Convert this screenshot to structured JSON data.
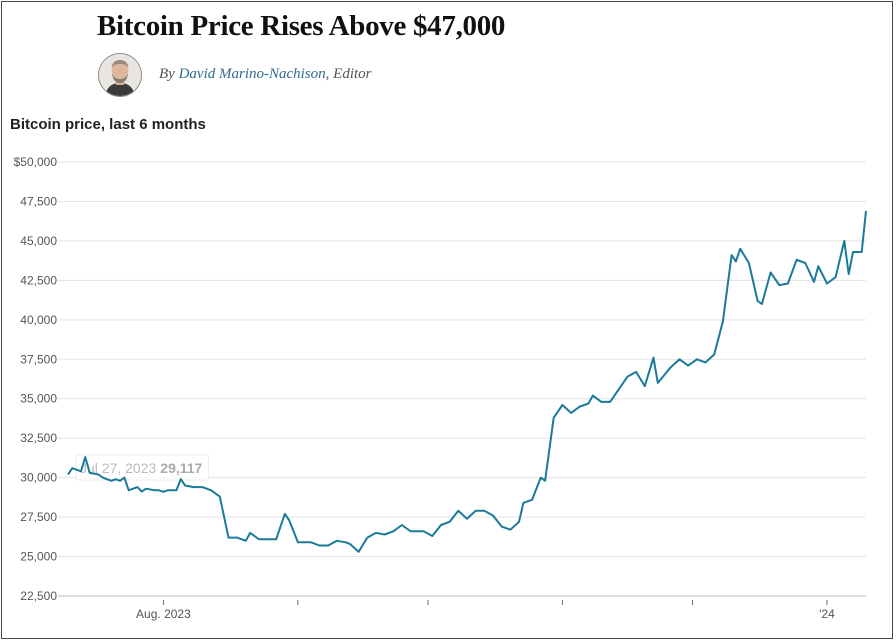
{
  "article": {
    "headline": "Bitcoin Price Rises Above $47,000",
    "byline_prefix": "By ",
    "author": "David Marino-Nachison",
    "role": ", Editor"
  },
  "colors": {
    "line": "#1b7a9a",
    "grid": "#e3e3e3",
    "author_link": "#2f6b8f"
  },
  "tooltip": {
    "date": "Jul 27, 2023",
    "value": "29,117"
  },
  "chart_data": {
    "type": "line",
    "title": "Bitcoin price, last 6 months",
    "ylim": [
      22500,
      50000
    ],
    "y_ticks": [
      22500,
      25000,
      27500,
      30000,
      32500,
      35000,
      37500,
      40000,
      42500,
      45000,
      47500,
      50000
    ],
    "y_tick_labels": [
      "22,500",
      "25,000",
      "27,500",
      "30,000",
      "32,500",
      "35,000",
      "37,500",
      "40,000",
      "42,500",
      "45,000",
      "47,500",
      "$50,000"
    ],
    "x_labels": [
      {
        "date": "2023-08-01",
        "label": "Aug. 2023"
      },
      {
        "date": "2024-01-01",
        "label": "'24"
      }
    ],
    "x_minor_ticks": [
      "2023-09-01",
      "2023-10-01",
      "2023-11-01",
      "2023-12-01"
    ],
    "xlim": [
      "2023-07-10",
      "2024-01-10"
    ],
    "grid": "horizontal",
    "series": [
      {
        "points": [
          [
            "2023-07-10",
            30200
          ],
          [
            "2023-07-11",
            30600
          ],
          [
            "2023-07-13",
            30400
          ],
          [
            "2023-07-14",
            31300
          ],
          [
            "2023-07-15",
            30300
          ],
          [
            "2023-07-17",
            30200
          ],
          [
            "2023-07-18",
            30000
          ],
          [
            "2023-07-19",
            29900
          ],
          [
            "2023-07-20",
            29800
          ],
          [
            "2023-07-21",
            29900
          ],
          [
            "2023-07-22",
            29800
          ],
          [
            "2023-07-23",
            30000
          ],
          [
            "2023-07-24",
            29200
          ],
          [
            "2023-07-26",
            29400
          ],
          [
            "2023-07-27",
            29117
          ],
          [
            "2023-07-28",
            29300
          ],
          [
            "2023-07-30",
            29200
          ],
          [
            "2023-07-31",
            29200
          ],
          [
            "2023-08-01",
            29100
          ],
          [
            "2023-08-02",
            29200
          ],
          [
            "2023-08-04",
            29200
          ],
          [
            "2023-08-05",
            29900
          ],
          [
            "2023-08-06",
            29500
          ],
          [
            "2023-08-08",
            29400
          ],
          [
            "2023-08-10",
            29400
          ],
          [
            "2023-08-12",
            29200
          ],
          [
            "2023-08-14",
            28800
          ],
          [
            "2023-08-16",
            26200
          ],
          [
            "2023-08-18",
            26200
          ],
          [
            "2023-08-20",
            26000
          ],
          [
            "2023-08-21",
            26500
          ],
          [
            "2023-08-23",
            26100
          ],
          [
            "2023-08-25",
            26100
          ],
          [
            "2023-08-27",
            26100
          ],
          [
            "2023-08-29",
            27700
          ],
          [
            "2023-08-30",
            27300
          ],
          [
            "2023-09-01",
            25900
          ],
          [
            "2023-09-04",
            25900
          ],
          [
            "2023-09-06",
            25700
          ],
          [
            "2023-09-08",
            25700
          ],
          [
            "2023-09-10",
            26000
          ],
          [
            "2023-09-12",
            25900
          ],
          [
            "2023-09-13",
            25800
          ],
          [
            "2023-09-15",
            25300
          ],
          [
            "2023-09-17",
            26200
          ],
          [
            "2023-09-19",
            26500
          ],
          [
            "2023-09-21",
            26400
          ],
          [
            "2023-09-23",
            26600
          ],
          [
            "2023-09-25",
            27000
          ],
          [
            "2023-09-27",
            26600
          ],
          [
            "2023-09-30",
            26600
          ],
          [
            "2023-10-02",
            26300
          ],
          [
            "2023-10-04",
            27000
          ],
          [
            "2023-10-06",
            27200
          ],
          [
            "2023-10-08",
            27900
          ],
          [
            "2023-10-10",
            27400
          ],
          [
            "2023-10-12",
            27900
          ],
          [
            "2023-10-14",
            27900
          ],
          [
            "2023-10-16",
            27600
          ],
          [
            "2023-10-18",
            26900
          ],
          [
            "2023-10-20",
            26700
          ],
          [
            "2023-10-22",
            27200
          ],
          [
            "2023-10-23",
            28400
          ],
          [
            "2023-10-25",
            28600
          ],
          [
            "2023-10-27",
            30000
          ],
          [
            "2023-10-28",
            29800
          ],
          [
            "2023-10-30",
            33800
          ],
          [
            "2023-11-01",
            34600
          ],
          [
            "2023-11-03",
            34100
          ],
          [
            "2023-11-05",
            34500
          ],
          [
            "2023-11-07",
            34700
          ],
          [
            "2023-11-08",
            35200
          ],
          [
            "2023-11-10",
            34800
          ],
          [
            "2023-11-12",
            34800
          ],
          [
            "2023-11-14",
            35600
          ],
          [
            "2023-11-16",
            36400
          ],
          [
            "2023-11-18",
            36700
          ],
          [
            "2023-11-20",
            35800
          ],
          [
            "2023-11-22",
            37600
          ],
          [
            "2023-11-23",
            36000
          ],
          [
            "2023-11-26",
            37000
          ],
          [
            "2023-11-28",
            37500
          ],
          [
            "2023-11-30",
            37100
          ],
          [
            "2023-12-02",
            37500
          ],
          [
            "2023-12-04",
            37300
          ],
          [
            "2023-12-06",
            37800
          ],
          [
            "2023-12-08",
            39900
          ],
          [
            "2023-12-10",
            44100
          ],
          [
            "2023-12-11",
            43700
          ],
          [
            "2023-12-12",
            44500
          ],
          [
            "2023-12-14",
            43600
          ],
          [
            "2023-12-16",
            41200
          ],
          [
            "2023-12-17",
            41000
          ],
          [
            "2023-12-19",
            43000
          ],
          [
            "2023-12-21",
            42200
          ],
          [
            "2023-12-23",
            42300
          ],
          [
            "2023-12-25",
            43800
          ],
          [
            "2023-12-27",
            43600
          ],
          [
            "2023-12-29",
            42400
          ],
          [
            "2023-12-30",
            43400
          ],
          [
            "2024-01-01",
            42300
          ],
          [
            "2024-01-03",
            42700
          ],
          [
            "2024-01-05",
            45000
          ],
          [
            "2024-01-06",
            42900
          ],
          [
            "2024-01-07",
            44300
          ],
          [
            "2024-01-09",
            44300
          ],
          [
            "2024-01-10",
            46900
          ]
        ]
      }
    ]
  }
}
